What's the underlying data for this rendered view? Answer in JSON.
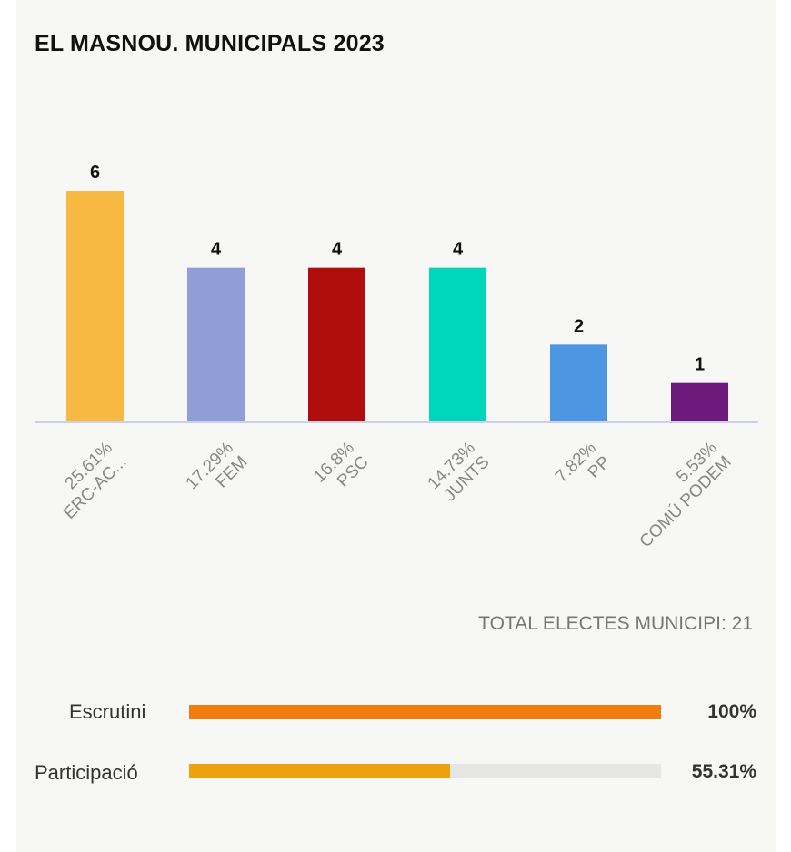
{
  "title": "EL MASNOU. MUNICIPALS 2023",
  "chart_data": {
    "type": "bar",
    "categories": [
      "ERC-AC...",
      "FEM",
      "PSC",
      "JUNTS",
      "PP",
      "COMÚ PODEM"
    ],
    "values": [
      6,
      4,
      4,
      4,
      2,
      1
    ],
    "percentages": [
      "25.61%",
      "17.29%",
      "16.8%",
      "14.73%",
      "7.82%",
      "5.53%"
    ],
    "colors": [
      "#f7b942",
      "#8f9ed6",
      "#b00d0d",
      "#00d6bc",
      "#4d96e2",
      "#6d1a7c"
    ],
    "ylim": [
      0,
      6
    ],
    "grid": false,
    "legend": "none",
    "baseline_color": "#ccd0ee"
  },
  "total_label": "TOTAL ELECTES MUNICIPI: 21",
  "progress": [
    {
      "label": "Escrutini",
      "value_text": "100%",
      "fraction": 1.0,
      "color": "#f07d0d"
    },
    {
      "label": "Participació",
      "value_text": "55.31%",
      "fraction": 0.5531,
      "color": "#eba20d"
    }
  ]
}
